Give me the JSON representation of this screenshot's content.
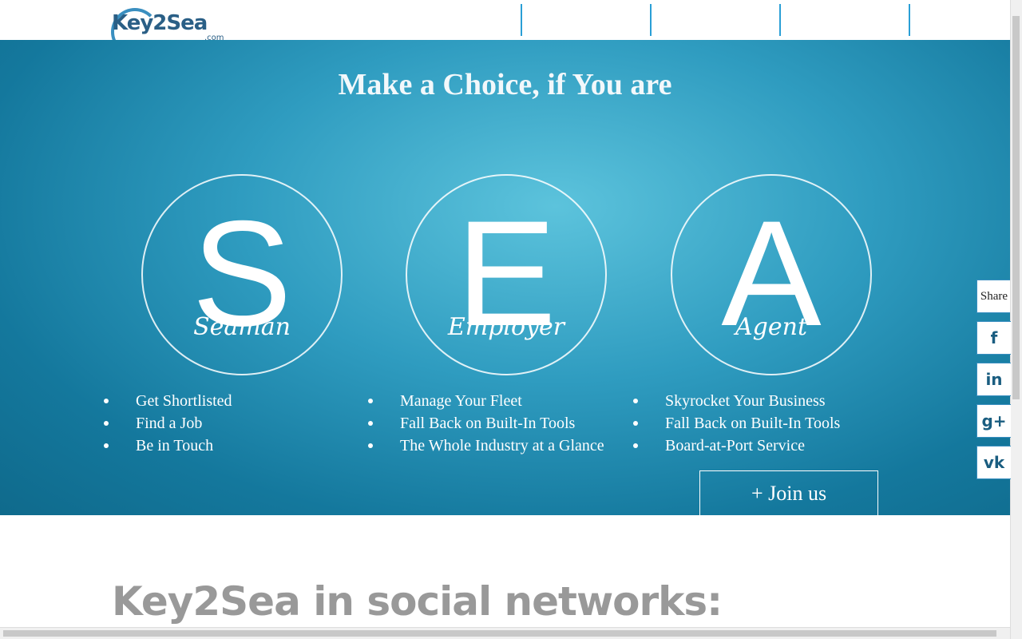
{
  "header": {
    "logo": "Key2Sea",
    "logo_suffix": ".com"
  },
  "hero": {
    "title": "Make a Choice, if You are",
    "cards": [
      {
        "letter": "S",
        "name": "Seaman",
        "items": [
          "Get Shortlisted",
          "Find a Job",
          "Be in Touch"
        ]
      },
      {
        "letter": "E",
        "name": "Employer",
        "items": [
          "Manage Your Fleet",
          "Fall Back on Built-In Tools",
          "The Whole Industry at a Glance"
        ]
      },
      {
        "letter": "A",
        "name": "Agent",
        "items": [
          "Skyrocket Your Business",
          "Fall Back on Built-In Tools",
          "Board-at-Port Service"
        ]
      }
    ],
    "button": "+ Join us"
  },
  "share": {
    "label": "Share",
    "icons": [
      "f",
      "in",
      "g+",
      "vk"
    ]
  },
  "social": {
    "heading": "Key2Sea in social networks:"
  }
}
